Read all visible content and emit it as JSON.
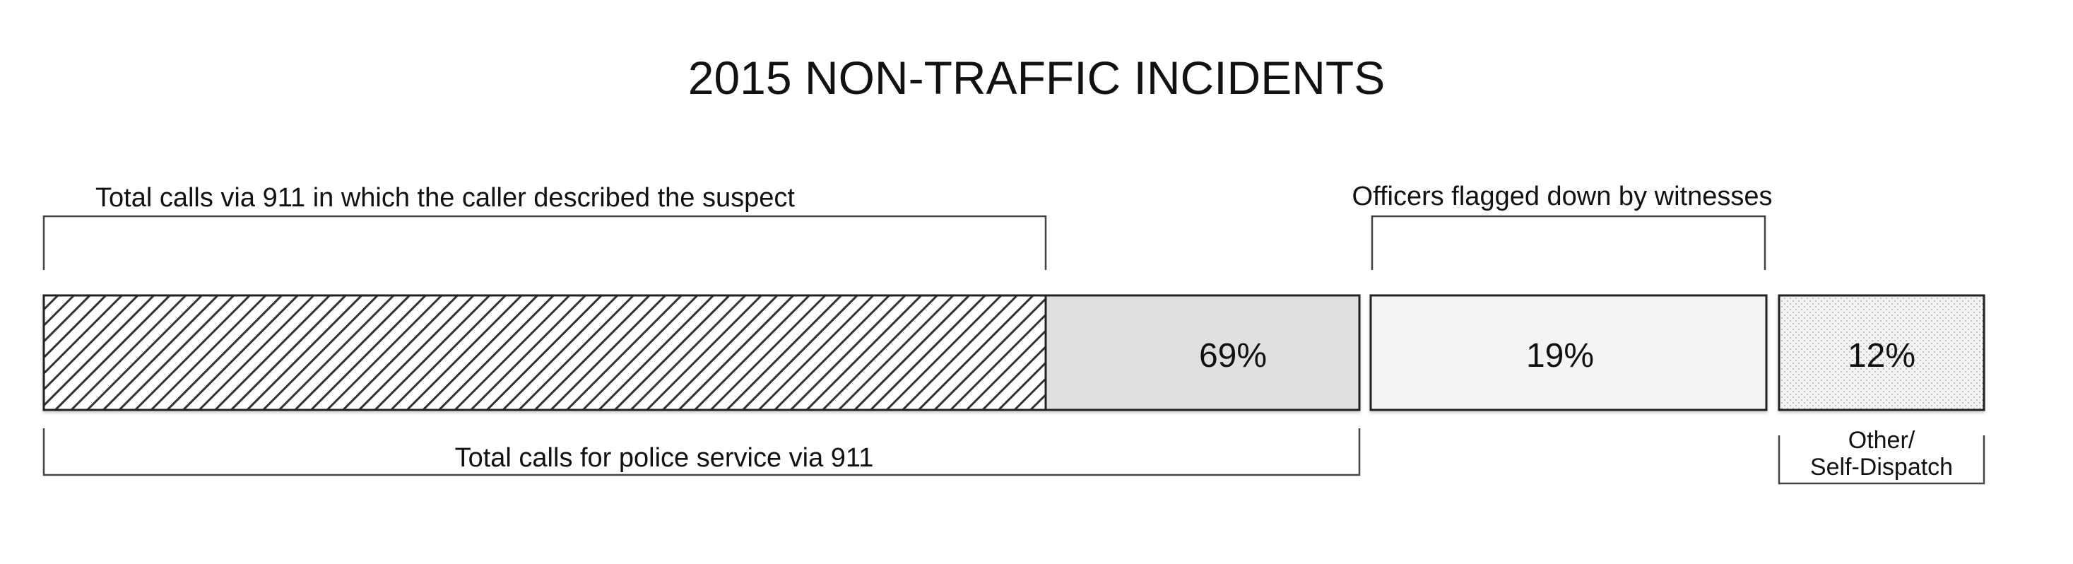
{
  "chart_data": {
    "type": "bar",
    "title": "2015 NON-TRAFFIC INCIDENTS",
    "categories": [
      "Total calls for police service via 911",
      "Officers flagged down by witnesses",
      "Other/\nSelf-Dispatch"
    ],
    "values": [
      69,
      19,
      12
    ],
    "value_labels": [
      "69%",
      "19%",
      "12%"
    ],
    "annotations": {
      "caller_described_suspect": "Total calls via 911 in which the caller described the suspect",
      "flagged_down": "Officers flagged down by witnesses",
      "total_911": "Total calls for police service via 911",
      "other_line1": "Other/",
      "other_line2": "Self-Dispatch"
    },
    "colors": {
      "hatched": "#ffffff",
      "seg_911": "#e0e0e0",
      "seg_flagged": "#f4f4f4",
      "seg_other": "#f0f0f0",
      "outline": "#222222"
    }
  }
}
